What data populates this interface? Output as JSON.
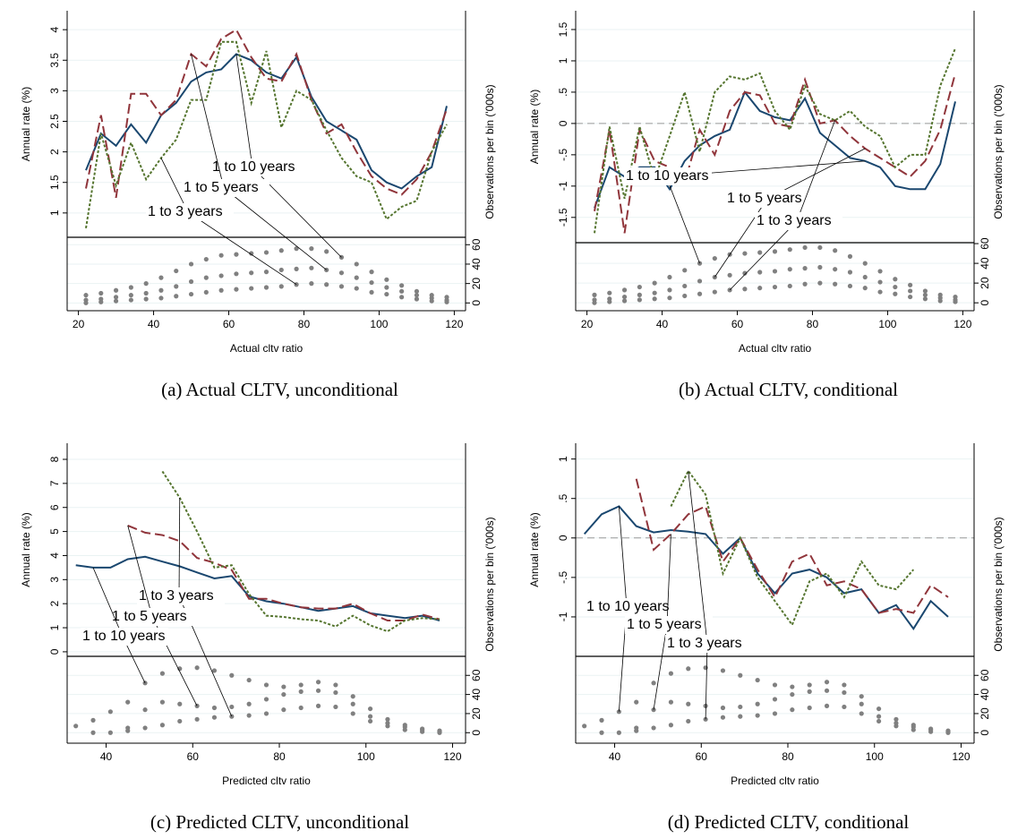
{
  "chart_data": [
    {
      "type": "line",
      "caption": "(a) Actual CLTV, unconditional",
      "xlabel": "Actual cltv ratio",
      "ylabel": "Annual rate (%)",
      "y2label": "Observations per bin ('000s)",
      "xlim": [
        17,
        123
      ],
      "xticks": [
        20,
        40,
        60,
        80,
        100,
        120
      ],
      "ylim": [
        -0.6,
        4.31
      ],
      "yticks": [
        1,
        1.5,
        2,
        2.5,
        3,
        3.5,
        4
      ],
      "y2lim": [
        -8,
        301
      ],
      "y2ticks": [
        0,
        20,
        40,
        60
      ],
      "grid": true,
      "x": [
        22,
        26,
        30,
        34,
        38,
        42,
        46,
        50,
        54,
        58,
        62,
        66,
        70,
        74,
        78,
        82,
        86,
        90,
        94,
        98,
        102,
        106,
        110,
        114,
        118
      ],
      "series": [
        {
          "name": "1 to 10 years",
          "color": "#1a476f",
          "values": [
            1.7,
            2.3,
            2.1,
            2.45,
            2.15,
            2.6,
            2.8,
            3.15,
            3.3,
            3.35,
            3.6,
            3.5,
            3.3,
            3.2,
            3.55,
            2.9,
            2.5,
            2.35,
            2.2,
            1.7,
            1.5,
            1.4,
            1.6,
            1.75,
            2.75
          ]
        },
        {
          "name": "1 to 5 years",
          "color": "#90353b",
          "values": [
            1.4,
            2.6,
            1.25,
            2.95,
            2.95,
            2.6,
            2.85,
            3.6,
            3.4,
            3.85,
            4.0,
            3.55,
            3.2,
            3.15,
            3.6,
            2.85,
            2.3,
            2.45,
            2.0,
            1.6,
            1.4,
            1.3,
            1.55,
            2.0,
            2.7
          ]
        },
        {
          "name": "1 to 3 years",
          "color": "#55752f",
          "values": [
            0.75,
            2.3,
            1.45,
            2.15,
            1.55,
            1.9,
            2.2,
            2.85,
            2.85,
            3.8,
            3.8,
            2.8,
            3.65,
            2.4,
            3.0,
            2.85,
            2.35,
            1.9,
            1.6,
            1.5,
            0.9,
            1.1,
            1.2,
            2.0,
            2.45
          ]
        }
      ],
      "y2_series": [
        {
          "axis": "y2",
          "color": "#808080",
          "values": [
            8,
            10,
            13,
            16,
            20,
            26,
            33,
            40,
            45,
            49,
            50,
            51,
            52,
            54,
            56,
            56,
            53,
            47,
            40,
            32,
            24,
            18,
            12,
            8,
            6
          ]
        },
        {
          "axis": "y2",
          "color": "#808080",
          "values": [
            3,
            4,
            6,
            8,
            10,
            13,
            17,
            22,
            26,
            28,
            30,
            31,
            32,
            34,
            35,
            36,
            34,
            31,
            26,
            21,
            16,
            12,
            8,
            5,
            3
          ]
        },
        {
          "axis": "y2",
          "color": "#808080",
          "values": [
            0,
            1,
            2,
            3,
            4,
            5,
            7,
            9,
            11,
            13,
            14,
            15,
            16,
            17,
            19,
            20,
            19,
            17,
            15,
            11,
            9,
            6,
            4,
            2,
            1
          ]
        }
      ]
    },
    {
      "type": "line",
      "caption": "(b) Actual CLTV, conditional",
      "xlabel": "Actual cltv ratio",
      "ylabel": "Annual rate (%)",
      "y2label": "Observations per bin ('000s)",
      "xlim": [
        17,
        123
      ],
      "xticks": [
        20,
        40,
        60,
        80,
        100,
        120
      ],
      "ylim": [
        -2.99,
        1.8
      ],
      "yticks": [
        -1.5,
        -1,
        {
          "value": -0.5,
          "label": "-.5"
        },
        0,
        {
          "value": 0.5,
          "label": ".5"
        },
        1,
        1.5
      ],
      "y2lim": [
        -8,
        296
      ],
      "y2ticks": [
        0,
        20,
        40,
        60
      ],
      "grid": true,
      "reference_line": 0,
      "x": [
        22,
        26,
        30,
        34,
        38,
        42,
        46,
        50,
        54,
        58,
        62,
        66,
        70,
        74,
        78,
        82,
        86,
        90,
        94,
        98,
        102,
        106,
        110,
        114,
        118
      ],
      "series": [
        {
          "name": "1 to 10 years",
          "color": "#1a476f",
          "values": [
            -1.35,
            -0.7,
            -0.85,
            -0.7,
            -0.7,
            -1.05,
            -0.6,
            -0.35,
            -0.2,
            -0.1,
            0.5,
            0.2,
            0.1,
            0.05,
            0.4,
            -0.15,
            -0.35,
            -0.55,
            -0.6,
            -0.7,
            -1.0,
            -1.05,
            -1.05,
            -0.65,
            0.35
          ]
        },
        {
          "name": "1 to 5 years",
          "color": "#90353b",
          "values": [
            -1.4,
            -0.1,
            -1.75,
            -0.1,
            -0.6,
            -0.7,
            -0.95,
            -0.1,
            -0.5,
            0.2,
            0.5,
            0.45,
            0.0,
            -0.05,
            0.7,
            0.0,
            0.05,
            -0.2,
            -0.4,
            -0.55,
            -0.7,
            -0.85,
            -0.6,
            -0.1,
            0.8
          ]
        },
        {
          "name": "1 to 3 years",
          "color": "#55752f",
          "values": [
            -1.75,
            -0.05,
            -1.2,
            -0.05,
            -0.9,
            -0.2,
            0.5,
            -0.45,
            0.5,
            0.75,
            0.7,
            0.8,
            0.2,
            -0.1,
            0.6,
            0.15,
            0.05,
            0.2,
            -0.05,
            -0.2,
            -0.7,
            -0.5,
            -0.5,
            0.6,
            1.2
          ]
        }
      ],
      "y2_series": [
        {
          "axis": "y2",
          "color": "#808080",
          "values": [
            8,
            10,
            13,
            16,
            20,
            26,
            33,
            40,
            45,
            49,
            50,
            51,
            52,
            54,
            56,
            56,
            53,
            47,
            40,
            32,
            24,
            18,
            12,
            8,
            6
          ]
        },
        {
          "axis": "y2",
          "color": "#808080",
          "values": [
            3,
            4,
            6,
            8,
            10,
            13,
            17,
            22,
            26,
            28,
            30,
            31,
            32,
            34,
            35,
            36,
            34,
            31,
            26,
            21,
            16,
            12,
            8,
            5,
            3
          ]
        },
        {
          "axis": "y2",
          "color": "#808080",
          "values": [
            0,
            1,
            2,
            3,
            4,
            5,
            7,
            9,
            11,
            13,
            14,
            15,
            16,
            17,
            19,
            20,
            19,
            17,
            15,
            11,
            9,
            6,
            4,
            2,
            1
          ]
        }
      ]
    },
    {
      "type": "line",
      "caption": "(c) Predicted CLTV, unconditional",
      "xlabel": "Predicted cltv ratio",
      "ylabel": "Annual rate (%)",
      "y2label": "Observations per bin ('000s)",
      "xlim": [
        31,
        123
      ],
      "xticks": [
        40,
        60,
        80,
        100,
        120
      ],
      "ylim": [
        -3.8,
        8.67
      ],
      "yticks": [
        0,
        1,
        2,
        3,
        4,
        5,
        6,
        7,
        8
      ],
      "y2lim": [
        -11,
        303
      ],
      "y2ticks": [
        0,
        20,
        40,
        60
      ],
      "grid": true,
      "x": [
        33,
        37,
        41,
        45,
        49,
        53,
        57,
        61,
        65,
        69,
        73,
        77,
        81,
        85,
        89,
        93,
        97,
        101,
        105,
        109,
        113,
        117
      ],
      "series": [
        {
          "name": "1 to 10 years",
          "color": "#1a476f",
          "values": [
            3.6,
            3.5,
            3.5,
            3.85,
            3.95,
            3.75,
            3.55,
            3.3,
            3.05,
            3.15,
            2.3,
            2.1,
            2.0,
            1.85,
            1.7,
            1.8,
            1.9,
            1.6,
            1.5,
            1.4,
            1.5,
            1.3
          ]
        },
        {
          "name": "1 to 5 years",
          "color": "#90353b",
          "values": [
            null,
            null,
            null,
            5.25,
            4.95,
            4.85,
            4.6,
            3.9,
            3.7,
            3.4,
            2.2,
            2.2,
            2.0,
            1.85,
            1.8,
            1.8,
            2.0,
            1.6,
            1.3,
            1.3,
            1.55,
            1.35
          ]
        },
        {
          "name": "1 to 3 years",
          "color": "#55752f",
          "values": [
            null,
            null,
            null,
            null,
            null,
            7.5,
            6.4,
            5.0,
            3.5,
            3.6,
            2.4,
            1.5,
            1.45,
            1.35,
            1.3,
            1.05,
            1.5,
            1.1,
            0.85,
            1.3,
            1.4,
            1.35
          ]
        }
      ],
      "y2_series": [
        {
          "axis": "y2",
          "color": "#808080",
          "values": [
            7,
            13,
            22,
            32,
            52,
            62,
            67,
            68,
            65,
            60,
            55,
            50,
            48,
            50,
            53,
            50,
            38,
            25,
            14,
            8,
            4,
            2
          ]
        },
        {
          "axis": "y2",
          "color": "#808080",
          "values": [
            null,
            null,
            null,
            5,
            24,
            32,
            30,
            28,
            26,
            27,
            30,
            35,
            40,
            43,
            44,
            42,
            30,
            17,
            10,
            6,
            3,
            1
          ]
        },
        {
          "axis": "y2",
          "color": "#808080",
          "values": [
            null,
            0,
            0,
            2,
            5,
            8,
            12,
            14,
            16,
            17,
            18,
            20,
            24,
            26,
            28,
            27,
            20,
            12,
            7,
            3,
            1,
            0
          ]
        }
      ]
    },
    {
      "type": "line",
      "caption": "(d) Predicted CLTV, conditional",
      "xlabel": "Predicted cltv ratio",
      "ylabel": "Annual rate (%)",
      "y2label": "Observations per bin ('000s)",
      "xlim": [
        31,
        123
      ],
      "xticks": [
        40,
        60,
        80,
        100,
        120
      ],
      "ylim": [
        -2.6,
        1.2
      ],
      "yticks": [
        -1,
        {
          "value": -0.5,
          "label": "-.5"
        },
        0,
        {
          "value": 0.5,
          "label": ".5"
        },
        1
      ],
      "y2lim": [
        -11,
        303
      ],
      "y2ticks": [
        0,
        20,
        40,
        60
      ],
      "grid": true,
      "reference_line": 0,
      "x": [
        33,
        37,
        41,
        45,
        49,
        53,
        57,
        61,
        65,
        69,
        73,
        77,
        81,
        85,
        89,
        93,
        97,
        101,
        105,
        109,
        113,
        117
      ],
      "series": [
        {
          "name": "1 to 10 years",
          "color": "#1a476f",
          "values": [
            0.05,
            0.3,
            0.4,
            0.15,
            0.07,
            0.1,
            0.08,
            0.05,
            -0.2,
            0.0,
            -0.45,
            -0.7,
            -0.45,
            -0.4,
            -0.5,
            -0.7,
            -0.65,
            -0.95,
            -0.85,
            -1.15,
            -0.8,
            -1.0
          ]
        },
        {
          "name": "1 to 5 years",
          "color": "#90353b",
          "values": [
            null,
            null,
            null,
            0.75,
            -0.15,
            0.05,
            0.3,
            0.4,
            -0.3,
            0.0,
            -0.4,
            -0.75,
            -0.3,
            -0.2,
            -0.6,
            -0.55,
            -0.65,
            -0.95,
            -0.9,
            -0.95,
            -0.6,
            -0.75
          ]
        },
        {
          "name": "1 to 3 years",
          "color": "#55752f",
          "values": [
            null,
            null,
            null,
            null,
            null,
            0.4,
            0.85,
            0.55,
            -0.45,
            0.0,
            -0.5,
            -0.8,
            -1.1,
            -0.55,
            -0.45,
            -0.75,
            -0.3,
            -0.6,
            -0.65,
            -0.4,
            null,
            null
          ]
        }
      ],
      "y2_series": [
        {
          "axis": "y2",
          "color": "#808080",
          "values": [
            7,
            13,
            22,
            32,
            52,
            62,
            67,
            68,
            65,
            60,
            55,
            50,
            48,
            50,
            53,
            50,
            38,
            25,
            14,
            8,
            4,
            2
          ]
        },
        {
          "axis": "y2",
          "color": "#808080",
          "values": [
            null,
            null,
            null,
            5,
            24,
            32,
            30,
            28,
            26,
            27,
            30,
            35,
            40,
            43,
            44,
            42,
            30,
            17,
            10,
            6,
            3,
            1
          ]
        },
        {
          "axis": "y2",
          "color": "#808080",
          "values": [
            null,
            0,
            0,
            2,
            5,
            8,
            12,
            14,
            16,
            17,
            18,
            20,
            24,
            26,
            28,
            27,
            20,
            12,
            7,
            3,
            1,
            0
          ]
        }
      ]
    }
  ]
}
